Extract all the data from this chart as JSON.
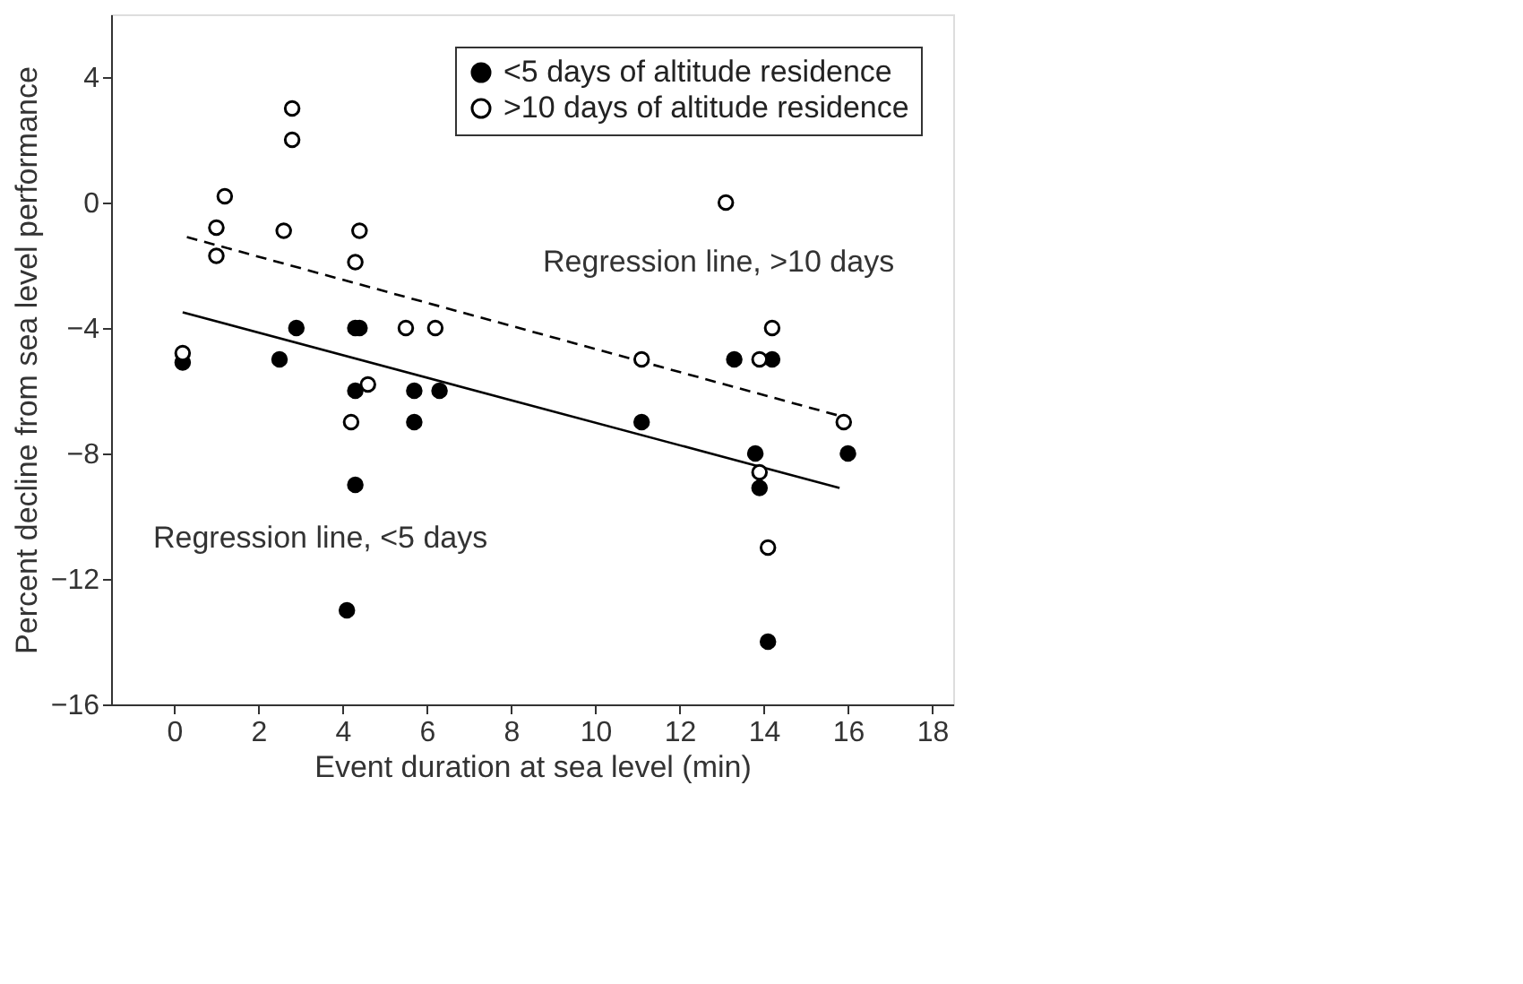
{
  "chart_data": {
    "type": "scatter",
    "xlabel": "Event duration at sea level (min)",
    "ylabel": "Percent decline from sea level performance",
    "xlim": [
      -1.5,
      18.5
    ],
    "xticks": [
      0,
      2,
      4,
      6,
      8,
      10,
      12,
      14,
      16,
      18
    ],
    "ylim": [
      -16,
      6
    ],
    "yticks": [
      -16,
      -12,
      -8,
      -4,
      0,
      4
    ],
    "grid": false,
    "legend": "top right",
    "marker": "circle",
    "series": [
      {
        "name": "<5 days of altitude residence",
        "color": "#000000",
        "x": [
          0.2,
          2.5,
          2.9,
          4.3,
          4.4,
          4.3,
          5.7,
          6.3,
          5.7,
          4.3,
          4.1,
          13.3,
          14.2,
          11.1,
          13.8,
          16.0,
          13.9,
          14.1
        ],
        "values": [
          -5.1,
          -5,
          -4,
          -4,
          -4,
          -6,
          -6,
          -6,
          -7,
          -9,
          -13,
          -5,
          -5,
          -7,
          -8,
          -8,
          -9.1,
          -14
        ]
      },
      {
        "name": ">10 days of altitude residence",
        "color": "#ffffff",
        "x": [
          2.8,
          2.8,
          1.2,
          1.0,
          1.0,
          2.6,
          4.4,
          4.3,
          5.5,
          6.2,
          0.2,
          4.2,
          4.6,
          13.1,
          14.2,
          13.9,
          11.1,
          15.9,
          13.9,
          14.1
        ],
        "values": [
          3,
          2,
          0.2,
          -0.8,
          -1.7,
          -0.9,
          -0.9,
          -1.9,
          -4,
          -4,
          -4.8,
          -7,
          -5.8,
          0,
          -4,
          -5,
          -5,
          -7,
          -8.6,
          -11
        ]
      },
      {
        "type": "line",
        "line_style": "dashed",
        "marker": "none",
        "color": "#000000",
        "x": [
          0.3,
          15.8
        ],
        "values": [
          -1.1,
          -6.8
        ]
      },
      {
        "type": "line",
        "line_style": "solid",
        "marker": "none",
        "color": "#000000",
        "x": [
          0.2,
          15.8
        ],
        "values": [
          -3.5,
          -9.1
        ]
      }
    ],
    "annotations": [
      "Regression line, >10 days",
      "Regression line, <5 days"
    ]
  }
}
